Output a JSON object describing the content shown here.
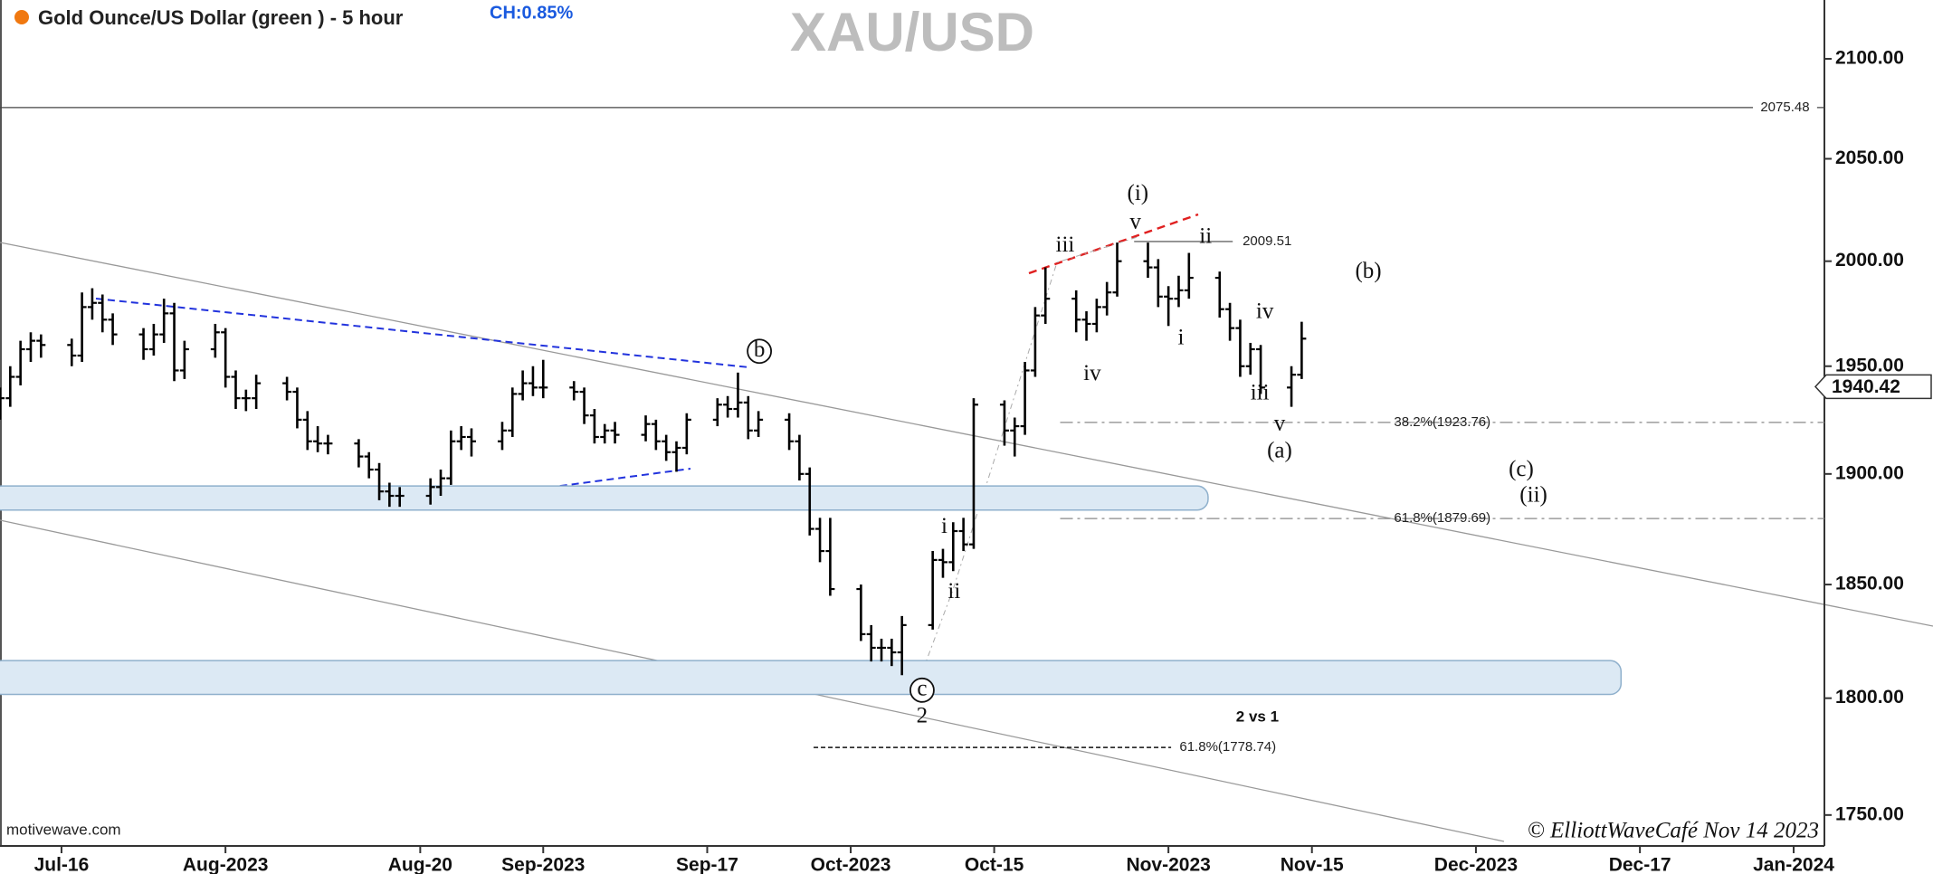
{
  "chart_data": {
    "type": "ohlc",
    "title": "XAU/USD",
    "subtitle": "Gold Ounce/US Dollar (green ) - 5 hour",
    "change": "CH:0.85%",
    "color": "#000000",
    "log_scale": true,
    "grid": false,
    "xlim": [
      "2023-07-10",
      "2024-01-04"
    ],
    "xticks": [
      {
        "value": "2023-07-16",
        "label": "Jul-16"
      },
      {
        "value": "2023-08-01",
        "label": "Aug-2023"
      },
      {
        "value": "2023-08-20",
        "label": "Aug-20"
      },
      {
        "value": "2023-09-01",
        "label": "Sep-2023"
      },
      {
        "value": "2023-09-17",
        "label": "Sep-17"
      },
      {
        "value": "2023-10-01",
        "label": "Oct-2023"
      },
      {
        "value": "2023-10-15",
        "label": "Oct-15"
      },
      {
        "value": "2023-11-01",
        "label": "Nov-2023"
      },
      {
        "value": "2023-11-15",
        "label": "Nov-15"
      },
      {
        "value": "2023-12-01",
        "label": "Dec-2023"
      },
      {
        "value": "2023-12-17",
        "label": "Dec-17"
      },
      {
        "value": "2024-01-01",
        "label": "Jan-2024"
      }
    ],
    "ylim": [
      1737,
      2130
    ],
    "yticks": [
      {
        "value": 1750,
        "label": "1750.00"
      },
      {
        "value": 1800,
        "label": "1800.00"
      },
      {
        "value": 1850,
        "label": "1850.00"
      },
      {
        "value": 1900,
        "label": "1900.00"
      },
      {
        "value": 1950,
        "label": "1950.00"
      },
      {
        "value": 2000,
        "label": "2000.00"
      },
      {
        "value": 2050,
        "label": "2050.00"
      },
      {
        "value": 2100,
        "label": "2100.00"
      }
    ],
    "x": [
      "2023-07-10",
      "2023-07-11",
      "2023-07-12",
      "2023-07-13",
      "2023-07-14",
      "2023-07-17",
      "2023-07-18",
      "2023-07-19",
      "2023-07-20",
      "2023-07-21",
      "2023-07-24",
      "2023-07-25",
      "2023-07-26",
      "2023-07-27",
      "2023-07-28",
      "2023-07-31",
      "2023-08-01",
      "2023-08-02",
      "2023-08-03",
      "2023-08-04",
      "2023-08-07",
      "2023-08-08",
      "2023-08-09",
      "2023-08-10",
      "2023-08-11",
      "2023-08-14",
      "2023-08-15",
      "2023-08-16",
      "2023-08-17",
      "2023-08-18",
      "2023-08-21",
      "2023-08-22",
      "2023-08-23",
      "2023-08-24",
      "2023-08-25",
      "2023-08-28",
      "2023-08-29",
      "2023-08-30",
      "2023-08-31",
      "2023-09-01",
      "2023-09-04",
      "2023-09-05",
      "2023-09-06",
      "2023-09-07",
      "2023-09-08",
      "2023-09-11",
      "2023-09-12",
      "2023-09-13",
      "2023-09-14",
      "2023-09-15",
      "2023-09-18",
      "2023-09-19",
      "2023-09-20",
      "2023-09-21",
      "2023-09-22",
      "2023-09-25",
      "2023-09-26",
      "2023-09-27",
      "2023-09-28",
      "2023-09-29",
      "2023-10-02",
      "2023-10-03",
      "2023-10-04",
      "2023-10-05",
      "2023-10-06",
      "2023-10-09",
      "2023-10-10",
      "2023-10-11",
      "2023-10-12",
      "2023-10-13",
      "2023-10-16",
      "2023-10-17",
      "2023-10-18",
      "2023-10-19",
      "2023-10-20",
      "2023-10-23",
      "2023-10-24",
      "2023-10-25",
      "2023-10-26",
      "2023-10-27",
      "2023-10-30",
      "2023-10-31",
      "2023-11-01",
      "2023-11-02",
      "2023-11-03",
      "2023-11-06",
      "2023-11-07",
      "2023-11-08",
      "2023-11-09",
      "2023-11-10",
      "2023-11-13",
      "2023-11-14"
    ],
    "ohlc": [
      [
        1930,
        1940,
        1925,
        1935
      ],
      [
        1935,
        1950,
        1931,
        1945
      ],
      [
        1945,
        1962,
        1941,
        1958
      ],
      [
        1958,
        1966,
        1952,
        1962
      ],
      [
        1962,
        1965,
        1954,
        1960
      ],
      [
        1960,
        1963,
        1950,
        1955
      ],
      [
        1955,
        1985,
        1952,
        1978
      ],
      [
        1978,
        1987,
        1972,
        1980
      ],
      [
        1980,
        1984,
        1966,
        1972
      ],
      [
        1972,
        1975,
        1960,
        1965
      ],
      [
        1965,
        1968,
        1953,
        1958
      ],
      [
        1958,
        1970,
        1955,
        1965
      ],
      [
        1965,
        1982,
        1961,
        1975
      ],
      [
        1975,
        1980,
        1943,
        1948
      ],
      [
        1948,
        1962,
        1944,
        1958
      ],
      [
        1958,
        1970,
        1954,
        1966
      ],
      [
        1966,
        1968,
        1940,
        1945
      ],
      [
        1945,
        1948,
        1930,
        1935
      ],
      [
        1935,
        1939,
        1929,
        1935
      ],
      [
        1935,
        1946,
        1930,
        1942
      ],
      [
        1942,
        1945,
        1934,
        1938
      ],
      [
        1938,
        1940,
        1921,
        1925
      ],
      [
        1925,
        1929,
        1911,
        1915
      ],
      [
        1915,
        1922,
        1910,
        1914
      ],
      [
        1914,
        1918,
        1909,
        1914
      ],
      [
        1914,
        1916,
        1903,
        1908
      ],
      [
        1908,
        1910,
        1898,
        1902
      ],
      [
        1902,
        1905,
        1888,
        1892
      ],
      [
        1892,
        1896,
        1885,
        1890
      ],
      [
        1890,
        1894,
        1885,
        1890
      ],
      [
        1890,
        1898,
        1886,
        1894
      ],
      [
        1894,
        1902,
        1890,
        1898
      ],
      [
        1898,
        1920,
        1895,
        1915
      ],
      [
        1915,
        1922,
        1911,
        1917
      ],
      [
        1917,
        1921,
        1908,
        1915
      ],
      [
        1915,
        1924,
        1911,
        1920
      ],
      [
        1920,
        1940,
        1917,
        1937
      ],
      [
        1937,
        1948,
        1934,
        1942
      ],
      [
        1942,
        1950,
        1936,
        1940
      ],
      [
        1940,
        1953,
        1935,
        1940
      ],
      [
        1940,
        1943,
        1934,
        1938
      ],
      [
        1938,
        1940,
        1923,
        1927
      ],
      [
        1927,
        1930,
        1914,
        1917
      ],
      [
        1917,
        1923,
        1914,
        1920
      ],
      [
        1920,
        1924,
        1914,
        1918
      ],
      [
        1918,
        1927,
        1915,
        1923
      ],
      [
        1923,
        1925,
        1911,
        1915
      ],
      [
        1915,
        1918,
        1906,
        1910
      ],
      [
        1910,
        1915,
        1901,
        1912
      ],
      [
        1912,
        1928,
        1909,
        1925
      ],
      [
        1925,
        1935,
        1922,
        1932
      ],
      [
        1932,
        1936,
        1926,
        1930
      ],
      [
        1930,
        1947,
        1926,
        1933
      ],
      [
        1933,
        1936,
        1916,
        1920
      ],
      [
        1920,
        1929,
        1917,
        1925
      ],
      [
        1925,
        1928,
        1911,
        1915
      ],
      [
        1915,
        1918,
        1897,
        1900
      ],
      [
        1900,
        1903,
        1872,
        1875
      ],
      [
        1875,
        1880,
        1860,
        1865
      ],
      [
        1865,
        1880,
        1845,
        1848
      ],
      [
        1848,
        1850,
        1825,
        1828
      ],
      [
        1828,
        1832,
        1816,
        1822
      ],
      [
        1822,
        1826,
        1816,
        1822
      ],
      [
        1822,
        1826,
        1814,
        1820
      ],
      [
        1820,
        1836,
        1810,
        1832
      ],
      [
        1832,
        1865,
        1830,
        1861
      ],
      [
        1861,
        1866,
        1853,
        1860
      ],
      [
        1860,
        1878,
        1856,
        1874
      ],
      [
        1874,
        1880,
        1865,
        1868
      ],
      [
        1868,
        1935,
        1866,
        1932
      ],
      [
        1932,
        1934,
        1913,
        1920
      ],
      [
        1920,
        1926,
        1908,
        1922
      ],
      [
        1922,
        1952,
        1918,
        1948
      ],
      [
        1948,
        1978,
        1945,
        1974
      ],
      [
        1974,
        1997,
        1970,
        1982
      ],
      [
        1982,
        1986,
        1966,
        1972
      ],
      [
        1972,
        1976,
        1962,
        1970
      ],
      [
        1970,
        1982,
        1966,
        1978
      ],
      [
        1978,
        1990,
        1974,
        1985
      ],
      [
        1985,
        2009,
        1983,
        2000
      ],
      [
        2000,
        2009,
        1992,
        1997
      ],
      [
        1997,
        2001,
        1978,
        1983
      ],
      [
        1983,
        1988,
        1969,
        1982
      ],
      [
        1982,
        1993,
        1978,
        1986
      ],
      [
        1986,
        2004,
        1982,
        1992
      ],
      [
        1992,
        1995,
        1973,
        1977
      ],
      [
        1977,
        1980,
        1962,
        1968
      ],
      [
        1968,
        1972,
        1945,
        1950
      ],
      [
        1950,
        1961,
        1946,
        1958
      ],
      [
        1958,
        1960,
        1937,
        1940
      ],
      [
        1940,
        1950,
        1931,
        1946
      ],
      [
        1946,
        1971,
        1944,
        1963
      ]
    ],
    "levels": [
      2075.48,
      2009.51,
      {
        "value": 1923.76,
        "label": "38.2%(1923.76)"
      },
      {
        "value": 1879.69,
        "label": "61.8%(1879.69)"
      },
      {
        "value": 1778.74,
        "label": "61.8%(1778.74)"
      }
    ],
    "zones": [
      [
        1886,
        1892
      ],
      [
        1804,
        1814
      ]
    ],
    "last_price": 1940.42,
    "annotations": [
      "(i)",
      "v",
      "iii",
      "ii",
      "i",
      "iv",
      "iv",
      "iii",
      "v",
      "(a)",
      "(b)",
      "(c)",
      "(ii)",
      "i",
      "ii",
      "b",
      "c",
      "2",
      "2 vs 1"
    ],
    "source": "motivewave.com",
    "credit": "© ElliottWaveCafé Nov 14 2023"
  }
}
